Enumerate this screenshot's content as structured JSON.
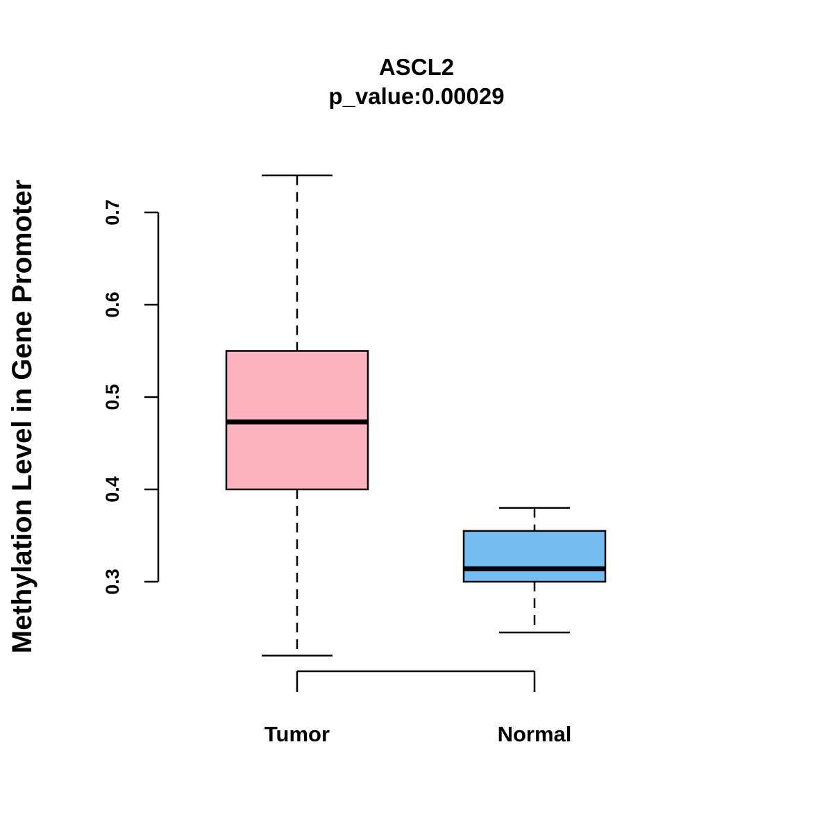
{
  "title": "ASCL2",
  "subtitle": "p_value:0.00029",
  "ylabel": "Methylation Level in Gene Promoter",
  "chart_data": {
    "type": "boxplot",
    "title": "ASCL2",
    "subtitle": "p_value:0.00029",
    "ylabel": "Methylation Level in Gene Promoter",
    "xlabel": "",
    "categories": [
      "Tumor",
      "Normal"
    ],
    "yticks": [
      0.3,
      0.4,
      0.5,
      0.6,
      0.7
    ],
    "ylim": [
      0.2,
      0.76
    ],
    "grid": false,
    "legend": "none",
    "series": [
      {
        "name": "Tumor",
        "min": 0.22,
        "q1": 0.4,
        "median": 0.473,
        "q3": 0.55,
        "max": 0.74,
        "color": "#FFB3C1"
      },
      {
        "name": "Normal",
        "min": 0.245,
        "q1": 0.3,
        "median": 0.314,
        "q3": 0.355,
        "max": 0.38,
        "color": "#74BDF0"
      }
    ]
  }
}
